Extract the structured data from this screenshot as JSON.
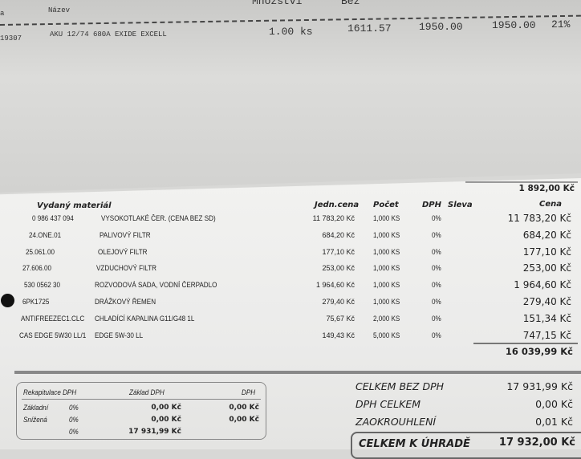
{
  "top_sheet": {
    "col_a": "a",
    "col_name": "Název",
    "col_qty": "Množství",
    "col_bez": "Bez",
    "code": "19307",
    "name": "AKU 12/74 680A EXIDE EXCELL",
    "qty": "1.00 ks",
    "price": "1611.57",
    "price2": "1950.00",
    "total": "1950.00",
    "vat": "21%"
  },
  "prev_total": "1 892,00 Kč",
  "headers": {
    "material": "Vydaný materiál",
    "unit_price": "Jedn.cena",
    "count": "Počet",
    "vat": "DPH",
    "discount": "Sleva",
    "price": "Cena"
  },
  "items": [
    {
      "code": "0 986 437 094",
      "name": "VYSOKOTLAKÉ ČER. (CENA BEZ SD)",
      "unit": "11 783,20 Kč",
      "count": "1,000 KS",
      "vat": "0%",
      "price": "11 783,20 Kč"
    },
    {
      "code": "24.ONE.01",
      "name": "PALIVOVÝ FILTR",
      "unit": "684,20 Kč",
      "count": "1,000 KS",
      "vat": "0%",
      "price": "684,20 Kč"
    },
    {
      "code": "25.061.00",
      "name": "OLEJOVÝ FILTR",
      "unit": "177,10 Kč",
      "count": "1,000 KS",
      "vat": "0%",
      "price": "177,10 Kč"
    },
    {
      "code": "27.606.00",
      "name": "VZDUCHOVÝ FILTR",
      "unit": "253,00 Kč",
      "count": "1,000 KS",
      "vat": "0%",
      "price": "253,00 Kč"
    },
    {
      "code": "530 0562 30",
      "name": "ROZVODOVÁ SADA, VODNÍ ČERPADLO",
      "unit": "1 964,60 Kč",
      "count": "1,000 KS",
      "vat": "0%",
      "price": "1 964,60 Kč"
    },
    {
      "code": "6PK1725",
      "name": "DRÁŽKOVÝ ŘEMEN",
      "unit": "279,40 Kč",
      "count": "1,000 KS",
      "vat": "0%",
      "price": "279,40 Kč"
    },
    {
      "code": "ANTIFREEZEC1.CLC",
      "name": "CHLADÍCÍ KAPALINA G11/G48 1L",
      "unit": "75,67 Kč",
      "count": "2,000 KS",
      "vat": "0%",
      "price": "151,34 Kč"
    },
    {
      "code": "CAS EDGE 5W30 LL/1",
      "name": "EDGE 5W-30 LL",
      "unit": "149,43 Kč",
      "count": "5,000 KS",
      "vat": "0%",
      "price": "747,15 Kč"
    }
  ],
  "subtotal": "16 039,99 Kč",
  "recap": {
    "title": "Rekapitulace DPH",
    "base_h": "Základ DPH",
    "vat_h": "DPH",
    "rows": [
      {
        "label": "Základní",
        "rate": "0%",
        "base": "0,00 Kč",
        "vat": "0,00 Kč"
      },
      {
        "label": "Snížená",
        "rate": "0%",
        "base": "0,00 Kč",
        "vat": "0,00 Kč"
      },
      {
        "label": "",
        "rate": "0%",
        "base": "17 931,99 Kč",
        "vat": ""
      }
    ]
  },
  "totals": [
    {
      "label": "CELKEM BEZ DPH",
      "value": "17 931,99 Kč"
    },
    {
      "label": "DPH CELKEM",
      "value": "0,00 Kč"
    },
    {
      "label": "ZAOKROUHLENÍ",
      "value": "0,01 Kč"
    }
  ],
  "grand": {
    "label": "CELKEM K ÚHRADĚ",
    "value": "17 932,00 Kč"
  }
}
